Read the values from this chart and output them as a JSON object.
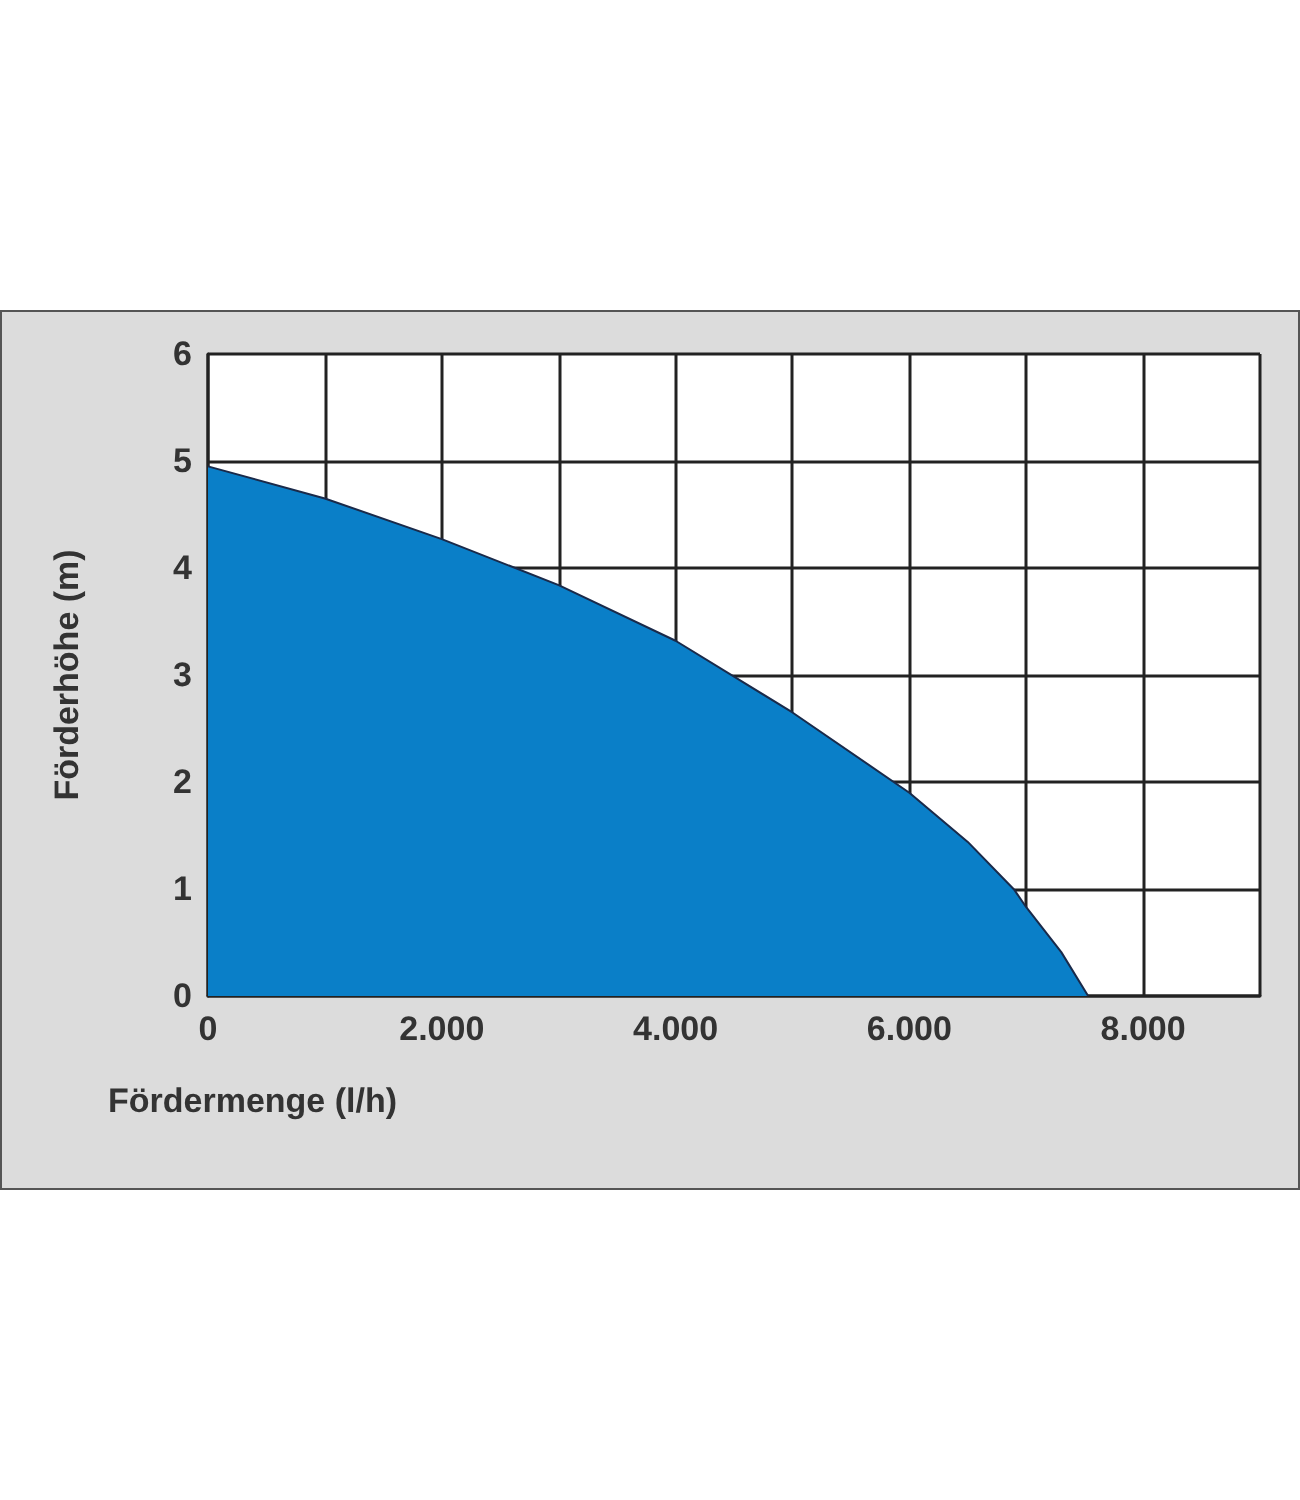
{
  "chart_data": {
    "type": "area",
    "xlabel": "Fördermenge (l/h)",
    "ylabel": "Förderhöhe (m)",
    "x": [
      0,
      1000,
      2000,
      3000,
      4000,
      5000,
      6000,
      6500,
      6900,
      7000,
      7300,
      7530
    ],
    "series": [
      {
        "color": "#0a7fc8",
        "values": [
          4.95,
          4.65,
          4.27,
          3.84,
          3.32,
          2.65,
          1.9,
          1.44,
          0.99,
          0.83,
          0.41,
          0
        ]
      }
    ],
    "xlim": [
      0,
      9000
    ],
    "xticks": [
      0,
      {
        "value": 1000,
        "label": null
      },
      {
        "value": 2000,
        "label": "2.000"
      },
      {
        "value": 3000,
        "label": null
      },
      {
        "value": 4000,
        "label": "4.000"
      },
      {
        "value": 5000,
        "label": null
      },
      {
        "value": 6000,
        "label": "6.000"
      },
      {
        "value": 7000,
        "label": null
      },
      {
        "value": 8000,
        "label": "8.000"
      },
      {
        "value": 9000,
        "label": null
      }
    ],
    "ylim": [
      0,
      6
    ],
    "yticks": [
      0,
      1,
      2,
      3,
      4,
      5,
      6
    ],
    "grid": true,
    "marker": "none",
    "line_style": "solid"
  }
}
